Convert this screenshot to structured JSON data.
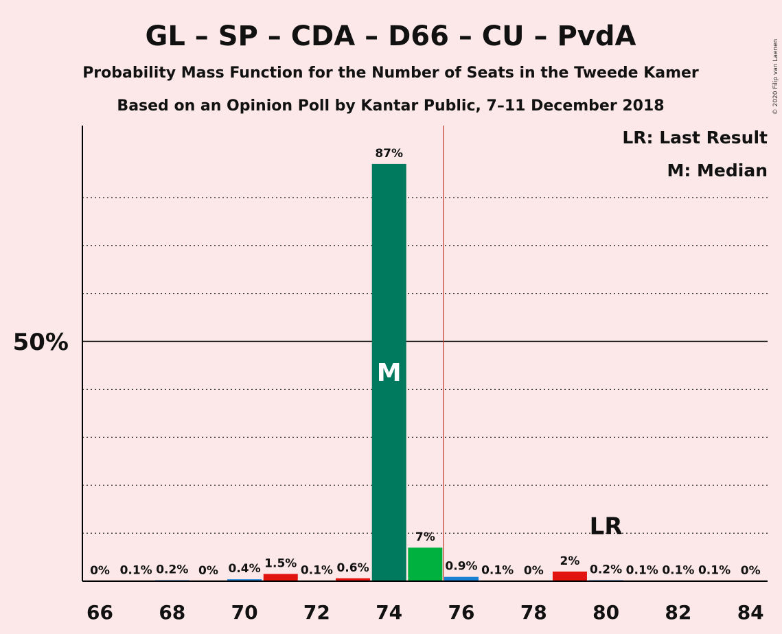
{
  "title": "GL – SP – CDA – D66 – CU – PvdA",
  "subtitle1": "Probability Mass Function for the Number of Seats in the Tweede Kamer",
  "subtitle2": "Based on an Opinion Poll by Kantar Public, 7–11 December 2018",
  "copyright": "© 2020 Filip van Laenen",
  "legend": {
    "last_result": "LR: Last Result",
    "median": "M: Median"
  },
  "chart_data": {
    "type": "bar",
    "x": [
      66,
      67,
      68,
      69,
      70,
      71,
      72,
      73,
      74,
      75,
      76,
      77,
      78,
      79,
      80,
      81,
      82,
      83,
      84
    ],
    "values": [
      0,
      0.1,
      0.2,
      0,
      0.4,
      1.5,
      0.1,
      0.6,
      87,
      7,
      0.9,
      0.1,
      0,
      2,
      0.2,
      0.1,
      0.1,
      0.1,
      0
    ],
    "labels": [
      "0%",
      "0.1%",
      "0.2%",
      "0%",
      "0.4%",
      "1.5%",
      "0.1%",
      "0.6%",
      "87%",
      "7%",
      "0.9%",
      "0.1%",
      "0%",
      "2%",
      "0.2%",
      "0.1%",
      "0.1%",
      "0.1%",
      "0%"
    ],
    "bar_colors": [
      "#1b7fd2",
      "#e3130f",
      "#1b7fd2",
      "#e3130f",
      "#1b7fd2",
      "#e3130f",
      "#1b7fd2",
      "#e3130f",
      "#007a5e",
      "#00b140",
      "#1b7fd2",
      "#e3130f",
      "#1b7fd2",
      "#e3130f",
      "#1b7fd2",
      "#e3130f",
      "#1b7fd2",
      "#e3130f",
      "#1b7fd2"
    ],
    "xticks": [
      66,
      68,
      70,
      72,
      74,
      76,
      78,
      80,
      82,
      84
    ],
    "xtick_labels": [
      "66",
      "68",
      "70",
      "72",
      "74",
      "76",
      "78",
      "80",
      "82",
      "84"
    ],
    "ylim": [
      0,
      95
    ],
    "ytick_label": "50%",
    "ytick_value": 50,
    "dotted_gridlines": [
      10,
      20,
      30,
      40,
      60,
      70,
      80
    ],
    "median": 74,
    "median_label": "M",
    "last_result": 80,
    "last_result_label": "LR",
    "threshold_line_x": 75.5,
    "colors": {
      "background": "#fce8e8",
      "median_bar": "#007a5e",
      "threshold": "#c0392b"
    }
  }
}
